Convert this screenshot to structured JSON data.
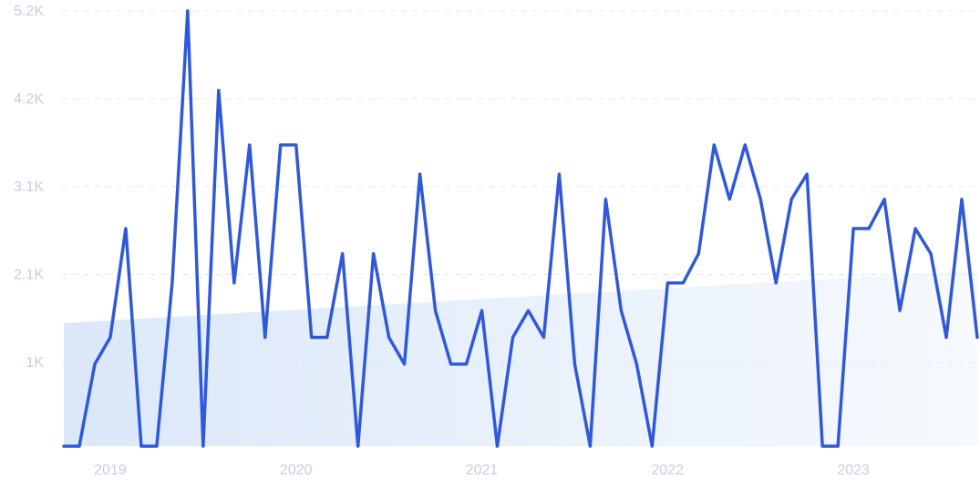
{
  "chart_data": {
    "type": "line",
    "title": "",
    "xlabel": "",
    "ylabel": "",
    "x_tick_labels": [
      "2019",
      "2020",
      "2021",
      "2022",
      "2023"
    ],
    "y_tick_labels": [
      "5.2K",
      "4.2K",
      "3.1K",
      "2.1K",
      "1K"
    ],
    "ylim": [
      0,
      5200
    ],
    "grid": true,
    "x": [
      "2018-10",
      "2018-11",
      "2018-12",
      "2019-01",
      "2019-02",
      "2019-03",
      "2019-04",
      "2019-05",
      "2019-06",
      "2019-07",
      "2019-08",
      "2019-09",
      "2019-10",
      "2019-11",
      "2019-12",
      "2020-01",
      "2020-02",
      "2020-03",
      "2020-04",
      "2020-05",
      "2020-06",
      "2020-07",
      "2020-08",
      "2020-09",
      "2020-10",
      "2020-11",
      "2020-12",
      "2021-01",
      "2021-02",
      "2021-03",
      "2021-04",
      "2021-05",
      "2021-06",
      "2021-07",
      "2021-08",
      "2021-09",
      "2021-10",
      "2021-11",
      "2021-12",
      "2022-01",
      "2022-02",
      "2022-03",
      "2022-04",
      "2022-05",
      "2022-06",
      "2022-07",
      "2022-08",
      "2022-09",
      "2022-10",
      "2022-11",
      "2022-12",
      "2023-01",
      "2023-02",
      "2023-03",
      "2023-04",
      "2023-05",
      "2023-06",
      "2023-07",
      "2023-08",
      "2023-09"
    ],
    "series": [
      {
        "values": [
          0,
          0,
          980,
          1300,
          2600,
          0,
          0,
          1950,
          5200,
          0,
          4250,
          1950,
          3600,
          1300,
          3600,
          3600,
          1300,
          1300,
          2300,
          0,
          2300,
          1300,
          980,
          3250,
          1620,
          980,
          980,
          1620,
          0,
          1300,
          1620,
          1300,
          3250,
          980,
          0,
          2950,
          1620,
          980,
          0,
          1950,
          1950,
          2300,
          3600,
          2950,
          3600,
          2950,
          1950,
          2950,
          3250,
          0,
          0,
          2600,
          2600,
          2950,
          1620,
          2600,
          2300,
          1300,
          2950,
          1300
        ],
        "color": "#3059d9"
      }
    ],
    "trend": {
      "start": 1470,
      "end": 2100,
      "color": "#dbe8f9"
    }
  }
}
